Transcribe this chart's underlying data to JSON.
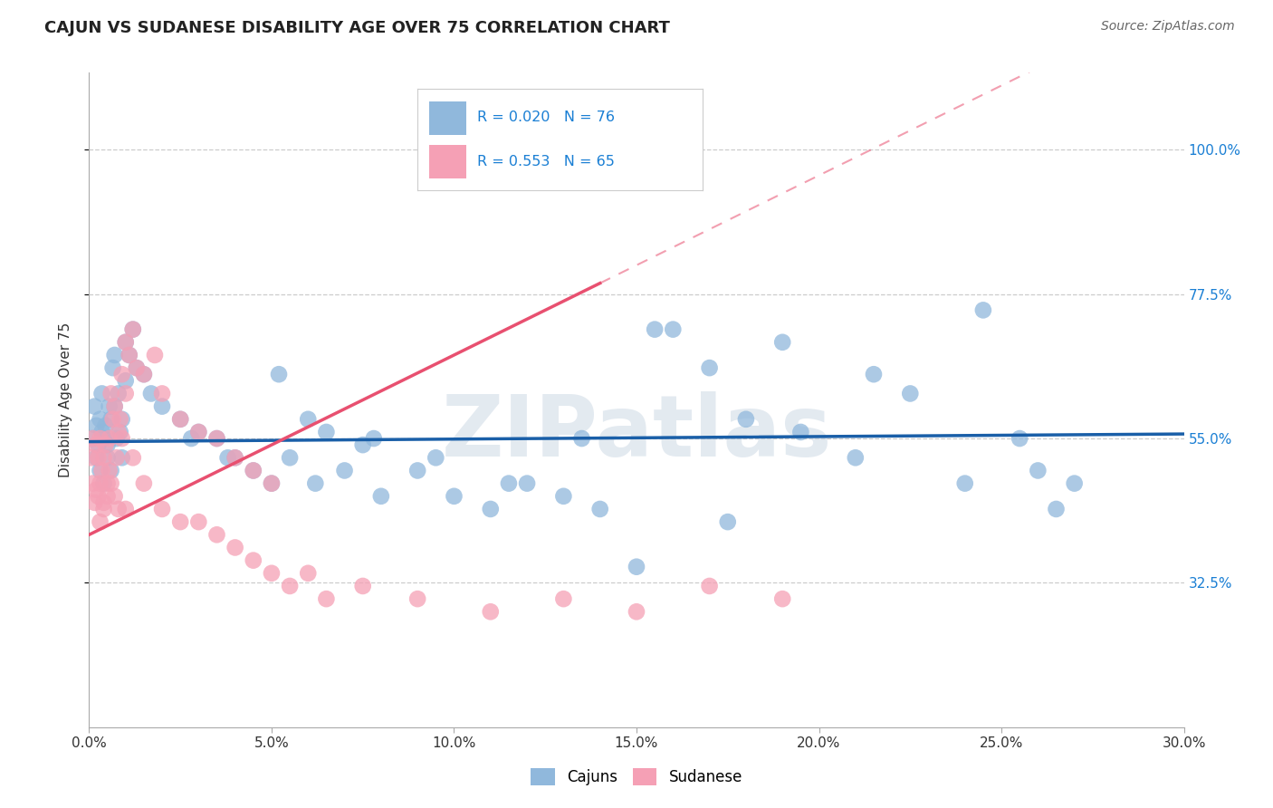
{
  "title": "CAJUN VS SUDANESE DISABILITY AGE OVER 75 CORRELATION CHART",
  "source": "Source: ZipAtlas.com",
  "ylabel": "Disability Age Over 75",
  "xlim": [
    0.0,
    30.0
  ],
  "ylim": [
    10.0,
    112.0
  ],
  "ytick_vals": [
    32.5,
    55.0,
    77.5,
    100.0
  ],
  "xtick_vals": [
    0.0,
    5.0,
    10.0,
    15.0,
    20.0,
    25.0,
    30.0
  ],
  "cajun_R": 0.02,
  "cajun_N": 76,
  "sudanese_R": 0.553,
  "sudanese_N": 65,
  "cajun_color": "#90b8dc",
  "sudanese_color": "#f5a0b5",
  "cajun_line_color": "#1a5fa8",
  "sudanese_line_color": "#e85070",
  "legend_text_color": "#1a7fd4",
  "right_axis_color": "#1a7fd4",
  "watermark": "ZIPatlas",
  "watermark_color": "#cdd9e5",
  "grid_color": "#cccccc",
  "background_color": "#ffffff",
  "cajun_line_intercept": 54.5,
  "cajun_line_slope": 0.04,
  "sudanese_line_intercept": 40.0,
  "sudanese_line_slope": 2.8,
  "sudanese_solid_xmax": 14.0,
  "cajun_x": [
    0.1,
    0.15,
    0.2,
    0.2,
    0.25,
    0.3,
    0.3,
    0.35,
    0.35,
    0.4,
    0.4,
    0.45,
    0.5,
    0.5,
    0.55,
    0.6,
    0.6,
    0.65,
    0.7,
    0.7,
    0.75,
    0.8,
    0.85,
    0.9,
    0.9,
    1.0,
    1.0,
    1.1,
    1.2,
    1.3,
    1.5,
    1.7,
    2.0,
    2.5,
    3.0,
    3.5,
    4.0,
    4.5,
    5.0,
    5.5,
    6.0,
    6.5,
    7.0,
    7.5,
    8.0,
    9.0,
    10.0,
    11.0,
    12.0,
    13.0,
    14.0,
    15.0,
    16.0,
    17.0,
    18.0,
    19.5,
    21.0,
    22.5,
    24.5,
    25.5,
    26.0,
    27.0,
    2.8,
    3.8,
    5.2,
    6.2,
    7.8,
    9.5,
    11.5,
    13.5,
    15.5,
    17.5,
    19.0,
    21.5,
    24.0,
    26.5
  ],
  "cajun_y": [
    55,
    60,
    57,
    52,
    54,
    58,
    50,
    56,
    62,
    55,
    48,
    57,
    54,
    52,
    60,
    58,
    50,
    66,
    60,
    68,
    55,
    62,
    56,
    58,
    52,
    70,
    64,
    68,
    72,
    66,
    65,
    62,
    60,
    58,
    56,
    55,
    52,
    50,
    48,
    52,
    58,
    56,
    50,
    54,
    46,
    50,
    46,
    44,
    48,
    46,
    44,
    35,
    72,
    66,
    58,
    56,
    52,
    62,
    75,
    55,
    50,
    48,
    55,
    52,
    65,
    48,
    55,
    52,
    48,
    55,
    72,
    42,
    70,
    65,
    48,
    44
  ],
  "sudanese_x": [
    0.05,
    0.1,
    0.1,
    0.15,
    0.2,
    0.2,
    0.25,
    0.25,
    0.3,
    0.3,
    0.35,
    0.4,
    0.4,
    0.45,
    0.5,
    0.5,
    0.55,
    0.6,
    0.65,
    0.7,
    0.75,
    0.8,
    0.85,
    0.9,
    0.9,
    1.0,
    1.0,
    1.1,
    1.2,
    1.5,
    1.8,
    2.0,
    2.5,
    3.0,
    3.5,
    4.0,
    4.5,
    5.0,
    1.3,
    0.55,
    0.3,
    0.4,
    0.6,
    0.7,
    0.8,
    1.0,
    1.2,
    1.5,
    2.0,
    2.5,
    3.0,
    3.5,
    4.0,
    4.5,
    5.0,
    5.5,
    6.0,
    6.5,
    7.5,
    9.0,
    11.0,
    13.0,
    15.0,
    17.0,
    19.0
  ],
  "sudanese_y": [
    52,
    48,
    55,
    45,
    54,
    47,
    52,
    46,
    55,
    48,
    50,
    52,
    45,
    54,
    48,
    46,
    55,
    62,
    58,
    60,
    52,
    56,
    58,
    65,
    55,
    70,
    62,
    68,
    72,
    65,
    68,
    62,
    58,
    56,
    55,
    52,
    50,
    48,
    66,
    50,
    42,
    44,
    48,
    46,
    44,
    44,
    52,
    48,
    44,
    42,
    42,
    40,
    38,
    36,
    34,
    32,
    34,
    30,
    32,
    30,
    28,
    30,
    28,
    32,
    30
  ]
}
